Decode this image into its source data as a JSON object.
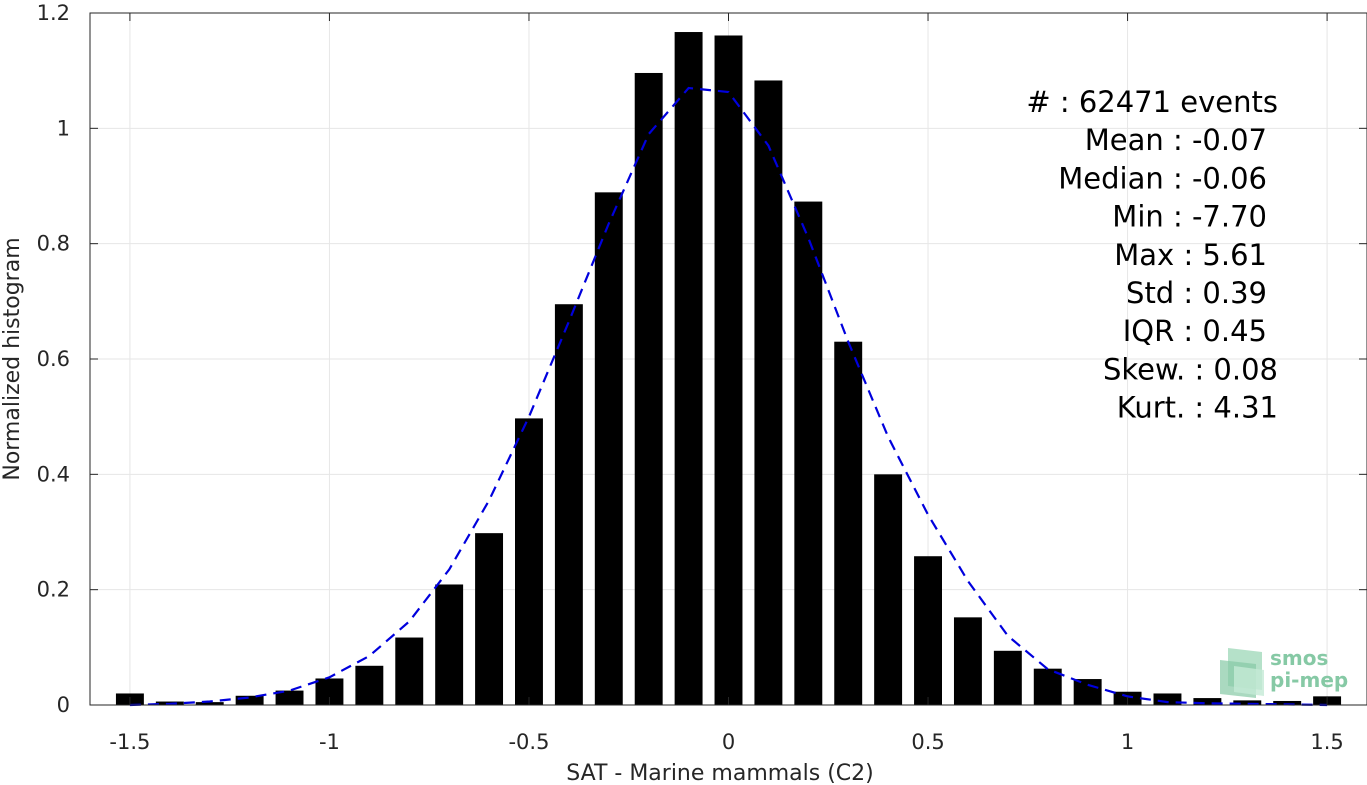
{
  "chart_data": {
    "type": "bar",
    "xlabel": "SAT - Marine mammals (C2)",
    "ylabel": "Normalized histogram",
    "xlim": [
      -1.6,
      1.6
    ],
    "ylim": [
      0,
      1.2
    ],
    "xticks": [
      -1.5,
      -1,
      -0.5,
      0,
      0.5,
      1,
      1.5
    ],
    "xtick_labels": [
      "-1.5",
      "-1",
      "-0.5",
      "0",
      "0.5",
      "1",
      "1.5"
    ],
    "yticks": [
      0,
      0.2,
      0.4,
      0.6,
      0.8,
      1,
      1.2
    ],
    "ytick_labels": [
      "0",
      "0.2",
      "0.4",
      "0.6",
      "0.8",
      "1",
      "1.2"
    ],
    "grid": true,
    "bar_width": 0.07,
    "bar_color": "#000000",
    "bins": [
      {
        "x": -1.5,
        "y": 0.02
      },
      {
        "x": -1.4,
        "y": 0.006
      },
      {
        "x": -1.3,
        "y": 0.005
      },
      {
        "x": -1.2,
        "y": 0.016
      },
      {
        "x": -1.1,
        "y": 0.025
      },
      {
        "x": -1.0,
        "y": 0.046
      },
      {
        "x": -0.9,
        "y": 0.068
      },
      {
        "x": -0.8,
        "y": 0.117
      },
      {
        "x": -0.7,
        "y": 0.209
      },
      {
        "x": -0.6,
        "y": 0.298
      },
      {
        "x": -0.5,
        "y": 0.497
      },
      {
        "x": -0.4,
        "y": 0.695
      },
      {
        "x": -0.3,
        "y": 0.889
      },
      {
        "x": -0.2,
        "y": 1.096
      },
      {
        "x": -0.1,
        "y": 1.167
      },
      {
        "x": 0.0,
        "y": 1.161
      },
      {
        "x": 0.1,
        "y": 1.083
      },
      {
        "x": 0.2,
        "y": 0.873
      },
      {
        "x": 0.3,
        "y": 0.63
      },
      {
        "x": 0.4,
        "y": 0.4
      },
      {
        "x": 0.5,
        "y": 0.258
      },
      {
        "x": 0.6,
        "y": 0.152
      },
      {
        "x": 0.7,
        "y": 0.094
      },
      {
        "x": 0.8,
        "y": 0.063
      },
      {
        "x": 0.9,
        "y": 0.045
      },
      {
        "x": 1.0,
        "y": 0.023
      },
      {
        "x": 1.1,
        "y": 0.02
      },
      {
        "x": 1.2,
        "y": 0.012
      },
      {
        "x": 1.3,
        "y": 0.008
      },
      {
        "x": 1.4,
        "y": 0.007
      },
      {
        "x": 1.5,
        "y": 0.015
      }
    ],
    "fit_curve": {
      "style": "dashed",
      "color": "#0000dd",
      "points": [
        [
          -1.5,
          0.0
        ],
        [
          -1.4,
          0.002
        ],
        [
          -1.3,
          0.006
        ],
        [
          -1.2,
          0.013
        ],
        [
          -1.1,
          0.025
        ],
        [
          -1.0,
          0.048
        ],
        [
          -0.9,
          0.085
        ],
        [
          -0.8,
          0.145
        ],
        [
          -0.7,
          0.235
        ],
        [
          -0.6,
          0.355
        ],
        [
          -0.5,
          0.5
        ],
        [
          -0.4,
          0.665
        ],
        [
          -0.3,
          0.835
        ],
        [
          -0.2,
          0.99
        ],
        [
          -0.1,
          1.07
        ],
        [
          0.0,
          1.063
        ],
        [
          0.1,
          0.97
        ],
        [
          0.2,
          0.81
        ],
        [
          0.3,
          0.63
        ],
        [
          0.4,
          0.465
        ],
        [
          0.5,
          0.33
        ],
        [
          0.6,
          0.215
        ],
        [
          0.7,
          0.12
        ],
        [
          0.8,
          0.062
        ],
        [
          0.9,
          0.035
        ],
        [
          1.0,
          0.015
        ],
        [
          1.1,
          0.005
        ],
        [
          1.2,
          0.003
        ],
        [
          1.3,
          0.002
        ],
        [
          1.4,
          0.001
        ],
        [
          1.5,
          0.0
        ]
      ]
    },
    "stats": [
      "#  : 62471 events",
      "Mean : -0.07",
      "Median : -0.06",
      "Min : -7.70",
      "Max : 5.61",
      "Std : 0.39",
      "IQR : 0.45",
      "Skew. : 0.08",
      "Kurt. : 4.31"
    ]
  },
  "logo": {
    "line1": "smos",
    "line2": "pi-mep",
    "color": "#86c9a5"
  }
}
